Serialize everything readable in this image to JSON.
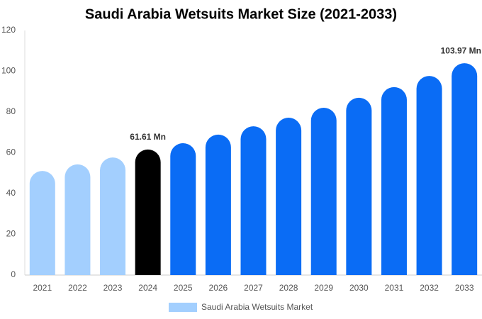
{
  "chart_data": {
    "type": "bar",
    "title": "Saudi Arabia Wetsuits Market Size (2021-2033)",
    "categories": [
      "2021",
      "2022",
      "2023",
      "2024",
      "2025",
      "2026",
      "2027",
      "2028",
      "2029",
      "2030",
      "2031",
      "2032",
      "2033"
    ],
    "series": [
      {
        "name": "Saudi Arabia Wetsuits Market",
        "color": "#a3cffe",
        "values": [
          51.1,
          54.3,
          57.7,
          61.61,
          64.7,
          68.9,
          73.0,
          77.2,
          82.1,
          87.0,
          92.2,
          97.7,
          103.97
        ],
        "value_labels": [
          null,
          null,
          null,
          "61.61 Mn",
          null,
          null,
          null,
          null,
          null,
          null,
          null,
          null,
          "103.97 Mn"
        ],
        "bar_colors": [
          "#a3cffe",
          "#a3cffe",
          "#a3cffe",
          "#000000",
          "#0a6cf5",
          "#0a6cf5",
          "#0a6cf5",
          "#0a6cf5",
          "#0a6cf5",
          "#0a6cf5",
          "#0a6cf5",
          "#0a6cf5",
          "#0a6cf5"
        ]
      }
    ],
    "ylim": [
      0,
      120
    ],
    "yticks": [
      0,
      20,
      40,
      60,
      80,
      100,
      120
    ],
    "grid": false,
    "legend": "bottom"
  }
}
